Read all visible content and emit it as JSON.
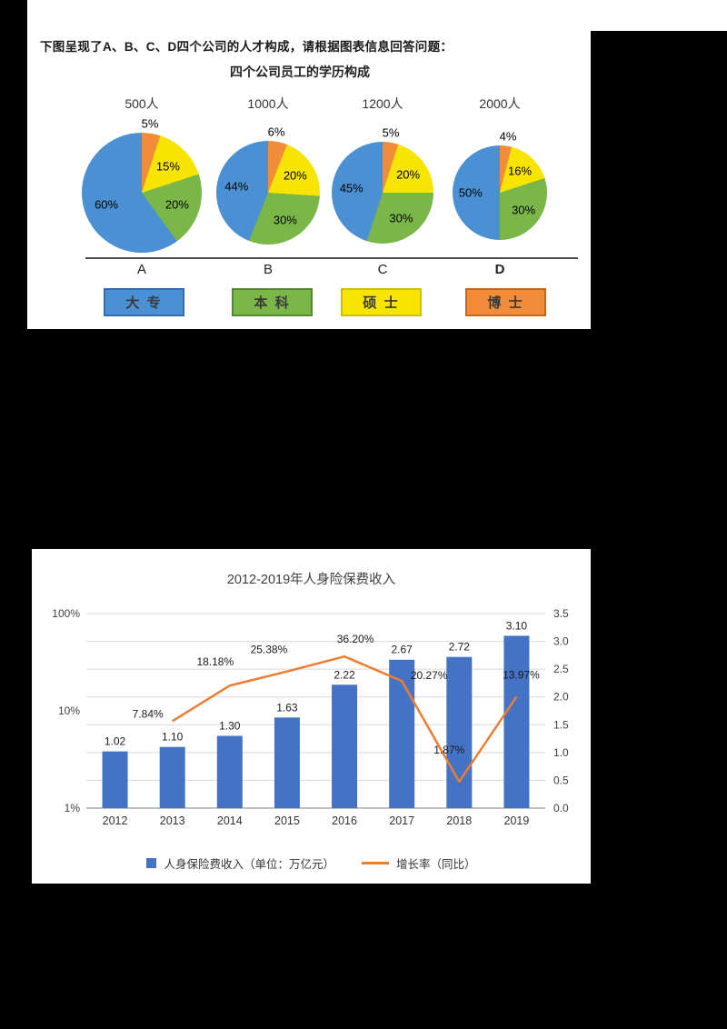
{
  "colors": {
    "page_bg": "#000000",
    "panel_bg": "#ffffff",
    "bar_blue": "#4472c4",
    "line_orange": "#ed7d31"
  },
  "pie_panel": {
    "prompt": "下图呈现了A、B、C、D四个公司的人才构成，请根据图表信息回答问题：",
    "title": "四个公司员工的学历构成"
  },
  "chart_data": [
    {
      "type": "pie",
      "title": "四个公司员工的学历构成",
      "legend": [
        {
          "label": "大 专",
          "color": "#4a90d2",
          "border": "#2f6db3"
        },
        {
          "label": "本 科",
          "color": "#7ab648",
          "border": "#55882f"
        },
        {
          "label": "硕 士",
          "color": "#f7e400",
          "border": "#cfc000"
        },
        {
          "label": "博 士",
          "color": "#f08c3a",
          "border": "#c4661c"
        }
      ],
      "charts": [
        {
          "company": "A",
          "header": "500人",
          "slices": [
            {
              "label": "博士",
              "value": 5,
              "color": "#f08c3a"
            },
            {
              "label": "硕士",
              "value": 15,
              "color": "#f7e400"
            },
            {
              "label": "本科",
              "value": 20,
              "color": "#7ab648"
            },
            {
              "label": "大专",
              "value": 60,
              "color": "#4a90d2"
            }
          ]
        },
        {
          "company": "B",
          "header": "1000人",
          "slices": [
            {
              "label": "博士",
              "value": 6,
              "color": "#f08c3a"
            },
            {
              "label": "硕士",
              "value": 20,
              "color": "#f7e400"
            },
            {
              "label": "本科",
              "value": 30,
              "color": "#7ab648"
            },
            {
              "label": "大专",
              "value": 44,
              "color": "#4a90d2"
            }
          ]
        },
        {
          "company": "C",
          "header": "1200人",
          "slices": [
            {
              "label": "博士",
              "value": 5,
              "color": "#f08c3a"
            },
            {
              "label": "硕士",
              "value": 20,
              "color": "#f7e400"
            },
            {
              "label": "本科",
              "value": 30,
              "color": "#7ab648"
            },
            {
              "label": "大专",
              "value": 45,
              "color": "#4a90d2"
            }
          ]
        },
        {
          "company": "D",
          "header": "2000人",
          "slices": [
            {
              "label": "博士",
              "value": 4,
              "color": "#f08c3a"
            },
            {
              "label": "硕士",
              "value": 16,
              "color": "#f7e400"
            },
            {
              "label": "本科",
              "value": 30,
              "color": "#7ab648"
            },
            {
              "label": "大专",
              "value": 50,
              "color": "#4a90d2"
            }
          ]
        }
      ]
    },
    {
      "type": "bar+line",
      "title": "2012-2019年人身险保费收入",
      "categories": [
        "2012",
        "2013",
        "2014",
        "2015",
        "2016",
        "2017",
        "2018",
        "2019"
      ],
      "bar_series": {
        "name": "人身保险费收入（单位：万亿元）",
        "values": [
          1.02,
          1.1,
          1.3,
          1.63,
          2.22,
          2.67,
          2.72,
          3.1
        ],
        "labels": [
          "1.02",
          "1.10",
          "1.30",
          "1.63",
          "2.22",
          "2.67",
          "2.72",
          "3.10"
        ],
        "color": "#4472c4"
      },
      "line_series": {
        "name": "增长率（同比）",
        "categories": [
          "2013",
          "2014",
          "2015",
          "2016",
          "2017",
          "2018",
          "2019"
        ],
        "values": [
          7.84,
          18.18,
          25.38,
          36.2,
          20.27,
          1.87,
          13.97
        ],
        "labels": [
          "7.84%",
          "18.18%",
          "25.38%",
          "36.20%",
          "20.27%",
          "1.87%",
          "13.97%"
        ],
        "color": "#ed7d31"
      },
      "left_axis": {
        "scale": "log",
        "ticks": [
          "100%",
          "10%",
          "1%"
        ]
      },
      "right_axis": {
        "range": [
          0,
          3.5
        ],
        "ticks": [
          "3.5",
          "3.0",
          "2.5",
          "2.0",
          "1.5",
          "1.0",
          "0.5",
          "0.0"
        ]
      },
      "grid": true,
      "legend_position": "bottom"
    }
  ]
}
